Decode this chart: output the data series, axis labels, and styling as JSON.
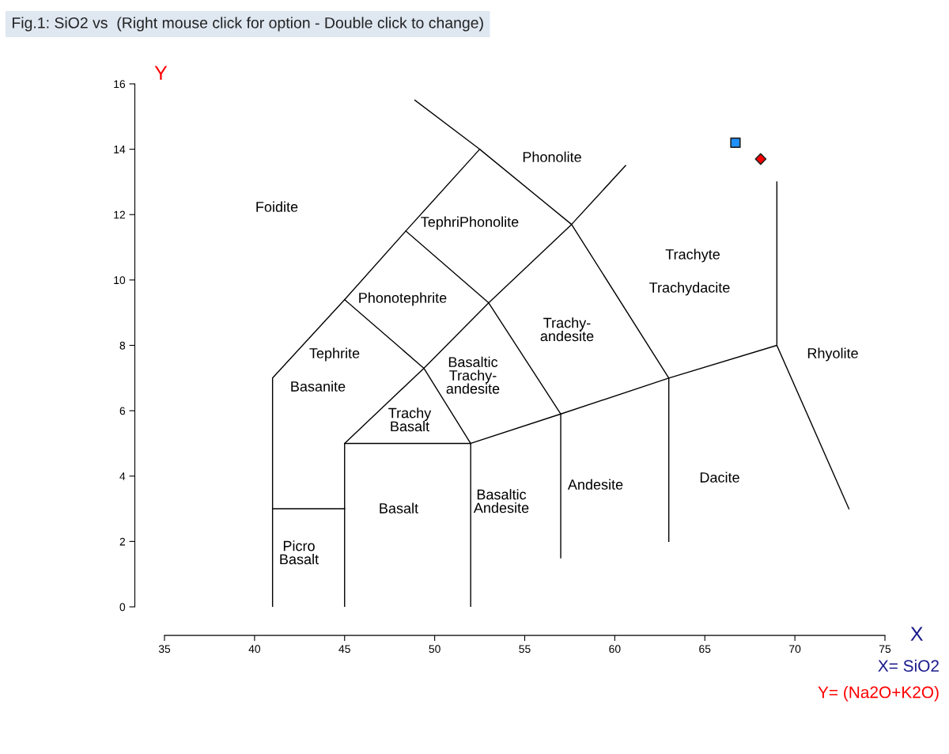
{
  "chart_data": {
    "type": "scatter",
    "title": "Fig.1: SiO2 vs  (Right mouse click for option - Double click to change)",
    "xlabel": "X",
    "ylabel": "Y",
    "xlim": [
      35,
      75
    ],
    "xticks": [
      35,
      40,
      45,
      50,
      55,
      60,
      65,
      70,
      75
    ],
    "ylim": [
      0,
      16
    ],
    "yticks": [
      0,
      2,
      4,
      6,
      8,
      10,
      12,
      14,
      16
    ],
    "grid": false,
    "series": [
      {
        "type": "line",
        "color": "#000000",
        "x": [
          41,
          41,
          45,
          48.4,
          52.5,
          57.6,
          63,
          63
        ],
        "values": [
          0,
          7,
          9.4,
          11.5,
          14,
          11.7,
          7,
          2
        ]
      },
      {
        "type": "line",
        "color": "#000000",
        "x": [
          41,
          45
        ],
        "values": [
          3,
          3
        ]
      },
      {
        "type": "line",
        "color": "#000000",
        "x": [
          45,
          45,
          52,
          52
        ],
        "values": [
          0,
          5,
          5,
          0
        ]
      },
      {
        "type": "line",
        "color": "#000000",
        "x": [
          52,
          57,
          63,
          69,
          69
        ],
        "values": [
          5,
          5.9,
          7,
          8,
          13
        ]
      },
      {
        "type": "line",
        "color": "#000000",
        "x": [
          57,
          57
        ],
        "values": [
          1.5,
          5.9
        ]
      },
      {
        "type": "line",
        "color": "#000000",
        "x": [
          69,
          73
        ],
        "values": [
          8,
          3
        ]
      },
      {
        "type": "line",
        "color": "#000000",
        "x": [
          48.9,
          52.5
        ],
        "values": [
          15.5,
          14
        ]
      },
      {
        "type": "line",
        "color": "#000000",
        "x": [
          45,
          49.4,
          53,
          57.6,
          60.6
        ],
        "values": [
          5,
          7.3,
          9.3,
          11.7,
          13.5
        ]
      },
      {
        "type": "line",
        "color": "#000000",
        "x": [
          45,
          49.4,
          52
        ],
        "values": [
          9.4,
          7.3,
          5
        ]
      },
      {
        "type": "line",
        "color": "#000000",
        "x": [
          48.4,
          53,
          57
        ],
        "values": [
          11.5,
          9.3,
          5.9
        ]
      },
      {
        "marker": "square",
        "color": "#1e90ff",
        "x": [
          66.7
        ],
        "values": [
          14.2
        ]
      },
      {
        "marker": "diamond",
        "color": "#ff0000",
        "x": [
          68.1
        ],
        "values": [
          13.7
        ]
      }
    ],
    "annotations": [
      "X= SiO2",
      "Y= (Na2O+K2O)",
      "Foidite",
      "Phonolite",
      "TephriPhonolite",
      "Trachyte",
      "Trachydacite",
      "Phonotephrite",
      "Trachy-\nandesite",
      "Rhyolite",
      "Tephrite",
      "Basaltic\nTrachy-\nandesite",
      "Basanite",
      "Trachy\nBasalt",
      "Dacite",
      "Andesite",
      "Basaltic\nAndesite",
      "Basalt",
      "Picro\nBasalt"
    ]
  }
}
